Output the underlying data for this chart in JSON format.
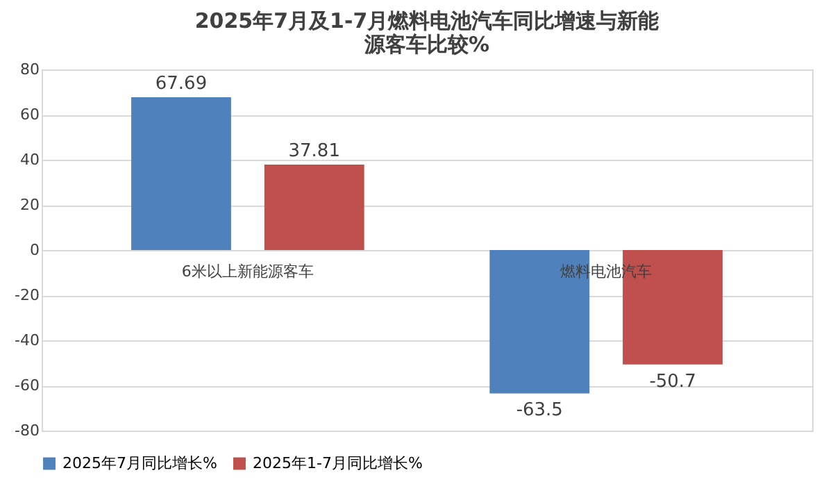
{
  "chart_data": {
    "type": "bar",
    "title": "2025年7月及1-7月燃料电池汽车同比增速与新能源客车比较%",
    "categories": [
      "6米以上新能源客车",
      "燃料电池汽车"
    ],
    "series": [
      {
        "name": "2025年7月同比增长%",
        "color": "#4f81bd",
        "values": [
          67.69,
          -63.5
        ]
      },
      {
        "name": "2025年1-7月同比增长%",
        "color": "#c0504d",
        "values": [
          37.81,
          -50.7
        ]
      }
    ],
    "ylim": [
      -80,
      80
    ],
    "yticks": [
      -80,
      -60,
      -40,
      -20,
      0,
      20,
      40,
      60,
      80
    ],
    "grid": "y",
    "legend": "bottom",
    "data_labels": true
  }
}
